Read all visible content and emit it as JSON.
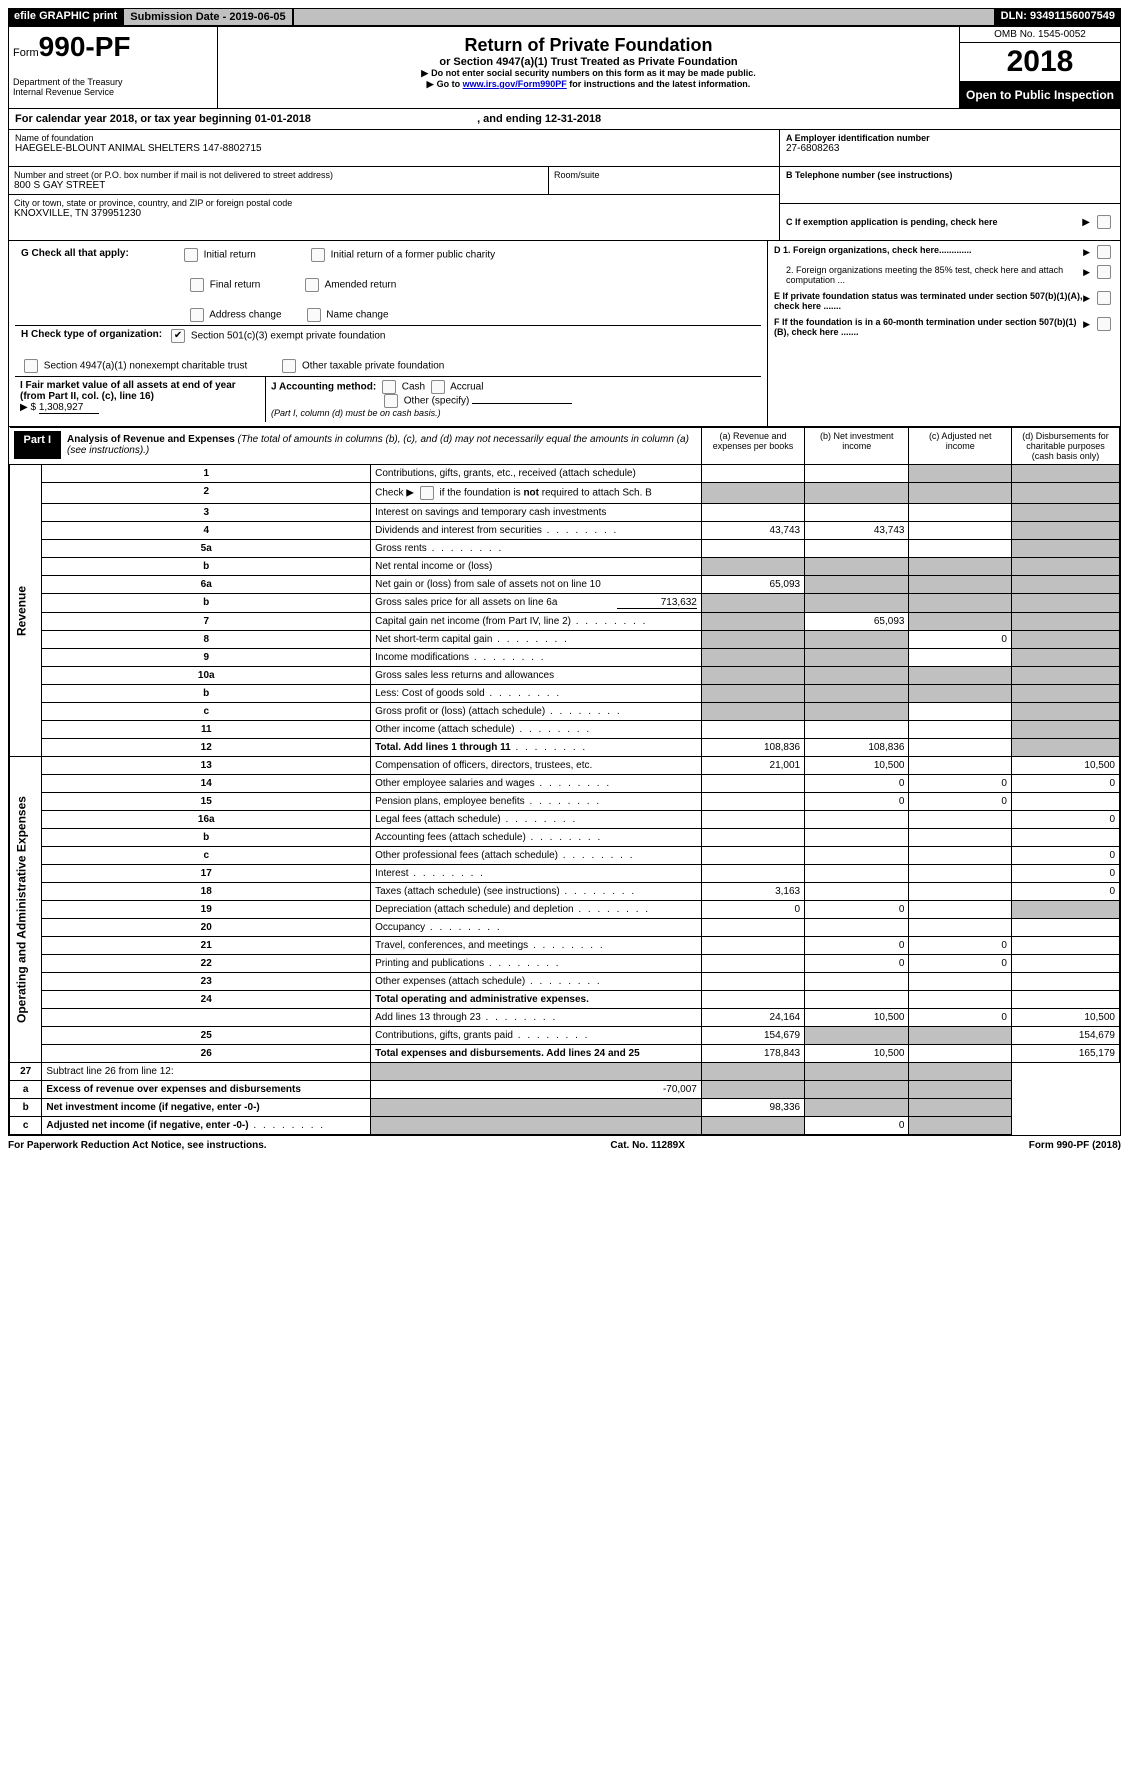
{
  "topbar": {
    "efile": "efile GRAPHIC print",
    "submission_label": "Submission Date - ",
    "submission_date": "2019-06-05",
    "dln_label": "DLN: ",
    "dln": "93491156007549"
  },
  "header": {
    "form_word": "Form",
    "form_number": "990-PF",
    "dept1": "Department of the Treasury",
    "dept2": "Internal Revenue Service",
    "title": "Return of Private Foundation",
    "subtitle": "or Section 4947(a)(1) Trust Treated as Private Foundation",
    "warn": "Do not enter social security numbers on this form as it may be made public.",
    "goto_pre": "Go to ",
    "goto_link": "www.irs.gov/Form990PF",
    "goto_post": " for instructions and the latest information.",
    "omb": "OMB No. 1545-0052",
    "year": "2018",
    "open": "Open to Public Inspection"
  },
  "period": {
    "prefix": "For calendar year 2018, or tax year beginning ",
    "begin": "01-01-2018",
    "mid": ", and ending ",
    "end": "12-31-2018"
  },
  "entity": {
    "name_lbl": "Name of foundation",
    "name": "HAEGELE-BLOUNT ANIMAL SHELTERS 147-8802715",
    "addr_lbl": "Number and street (or P.O. box number if mail is not delivered to street address)",
    "addr": "800 S GAY STREET",
    "room_lbl": "Room/suite",
    "city_lbl": "City or town, state or province, country, and ZIP or foreign postal code",
    "city": "KNOXVILLE, TN  379951230",
    "ein_lbl": "A Employer identification number",
    "ein": "27-6808263",
    "tel_lbl": "B Telephone number (see instructions)",
    "c_lbl": "C  If exemption application is pending, check here"
  },
  "G": {
    "label": "G  Check all that apply:",
    "opts": [
      "Initial return",
      "Initial return of a former public charity",
      "Final return",
      "Amended return",
      "Address change",
      "Name change"
    ]
  },
  "H": {
    "label": "H Check type of organization:",
    "o1": "Section 501(c)(3) exempt private foundation",
    "o2": "Section 4947(a)(1) nonexempt charitable trust",
    "o3": "Other taxable private foundation"
  },
  "I": {
    "label": "I  Fair market value of all assets at end of year (from Part II, col. (c), line 16)",
    "value": "1,308,927"
  },
  "J": {
    "label": "J Accounting method:",
    "o1": "Cash",
    "o2": "Accrual",
    "o3": "Other (specify)",
    "note": "(Part I, column (d) must be on cash basis.)"
  },
  "rightDEF": {
    "d1": "D 1. Foreign organizations, check here.............",
    "d2": "2. Foreign organizations meeting the 85% test, check here and attach computation ...",
    "e": "E  If private foundation status was terminated under section 507(b)(1)(A), check here .......",
    "f": "F  If the foundation is in a 60-month termination under section 507(b)(1)(B), check here ......."
  },
  "partI": {
    "tag": "Part I",
    "title_bold": "Analysis of Revenue and Expenses",
    "title_rest": " (The total of amounts in columns (b), (c), and (d) may not necessarily equal the amounts in column (a) (see instructions).)",
    "cols": {
      "a": "(a)     Revenue and expenses per books",
      "b": "(b)    Net investment income",
      "c": "(c)    Adjusted net income",
      "d": "(d)    Disbursements for charitable purposes (cash basis only)"
    },
    "revenue_label": "Revenue",
    "expenses_label": "Operating and Administrative Expenses",
    "rows": [
      {
        "n": "1",
        "d": "Contributions, gifts, grants, etc., received (attach schedule)",
        "a": "",
        "b": "",
        "c": "s",
        "dd": "s"
      },
      {
        "n": "2",
        "d": "Check ▶ ☐ if the foundation is not required to attach Sch. B",
        "a": "s",
        "b": "s",
        "c": "s",
        "dd": "s",
        "nobind": true
      },
      {
        "n": "3",
        "d": "Interest on savings and temporary cash investments",
        "a": "",
        "b": "",
        "c": "",
        "dd": "s"
      },
      {
        "n": "4",
        "d": "Dividends and interest from securities",
        "a": "43,743",
        "b": "43,743",
        "c": "",
        "dd": "s",
        "dots": true
      },
      {
        "n": "5a",
        "d": "Gross rents",
        "a": "",
        "b": "",
        "c": "",
        "dd": "s",
        "dots": true
      },
      {
        "n": "b",
        "d": "Net rental income or (loss)",
        "a": "s",
        "b": "s",
        "c": "s",
        "dd": "s"
      },
      {
        "n": "6a",
        "d": "Net gain or (loss) from sale of assets not on line 10",
        "a": "65,093",
        "b": "s",
        "c": "s",
        "dd": "s"
      },
      {
        "n": "b",
        "d": "Gross sales price for all assets on line 6a",
        "extra": "713,632",
        "a": "s",
        "b": "s",
        "c": "s",
        "dd": "s"
      },
      {
        "n": "7",
        "d": "Capital gain net income (from Part IV, line 2)",
        "a": "s",
        "b": "65,093",
        "c": "s",
        "dd": "s",
        "dots": true
      },
      {
        "n": "8",
        "d": "Net short-term capital gain",
        "a": "s",
        "b": "s",
        "c": "0",
        "dd": "s",
        "dots": true
      },
      {
        "n": "9",
        "d": "Income modifications",
        "a": "s",
        "b": "s",
        "c": "",
        "dd": "s",
        "dots": true
      },
      {
        "n": "10a",
        "d": "Gross sales less returns and allowances",
        "a": "s",
        "b": "s",
        "c": "s",
        "dd": "s"
      },
      {
        "n": "b",
        "d": "Less: Cost of goods sold",
        "a": "s",
        "b": "s",
        "c": "s",
        "dd": "s",
        "dots": true
      },
      {
        "n": "c",
        "d": "Gross profit or (loss) (attach schedule)",
        "a": "s",
        "b": "s",
        "c": "",
        "dd": "s",
        "dots": true
      },
      {
        "n": "11",
        "d": "Other income (attach schedule)",
        "a": "",
        "b": "",
        "c": "",
        "dd": "s",
        "dots": true
      },
      {
        "n": "12",
        "d": "Total. Add lines 1 through 11",
        "a": "108,836",
        "b": "108,836",
        "c": "",
        "dd": "s",
        "bold": true,
        "dots": true
      }
    ],
    "exp_rows": [
      {
        "n": "13",
        "d": "Compensation of officers, directors, trustees, etc.",
        "a": "21,001",
        "b": "10,500",
        "c": "",
        "dd": "10,500"
      },
      {
        "n": "14",
        "d": "Other employee salaries and wages",
        "a": "",
        "b": "0",
        "c": "0",
        "dd": "0",
        "dots": true
      },
      {
        "n": "15",
        "d": "Pension plans, employee benefits",
        "a": "",
        "b": "0",
        "c": "0",
        "dd": "",
        "dots": true
      },
      {
        "n": "16a",
        "d": "Legal fees (attach schedule)",
        "a": "",
        "b": "",
        "c": "",
        "dd": "0",
        "dots": true
      },
      {
        "n": "b",
        "d": "Accounting fees (attach schedule)",
        "a": "",
        "b": "",
        "c": "",
        "dd": "",
        "dots": true
      },
      {
        "n": "c",
        "d": "Other professional fees (attach schedule)",
        "a": "",
        "b": "",
        "c": "",
        "dd": "0",
        "dots": true
      },
      {
        "n": "17",
        "d": "Interest",
        "a": "",
        "b": "",
        "c": "",
        "dd": "0",
        "dots": true
      },
      {
        "n": "18",
        "d": "Taxes (attach schedule) (see instructions)",
        "a": "3,163",
        "b": "",
        "c": "",
        "dd": "0",
        "dots": true
      },
      {
        "n": "19",
        "d": "Depreciation (attach schedule) and depletion",
        "a": "0",
        "b": "0",
        "c": "",
        "dd": "s",
        "dots": true
      },
      {
        "n": "20",
        "d": "Occupancy",
        "a": "",
        "b": "",
        "c": "",
        "dd": "",
        "dots": true
      },
      {
        "n": "21",
        "d": "Travel, conferences, and meetings",
        "a": "",
        "b": "0",
        "c": "0",
        "dd": "",
        "dots": true
      },
      {
        "n": "22",
        "d": "Printing and publications",
        "a": "",
        "b": "0",
        "c": "0",
        "dd": "",
        "dots": true
      },
      {
        "n": "23",
        "d": "Other expenses (attach schedule)",
        "a": "",
        "b": "",
        "c": "",
        "dd": "",
        "dots": true
      },
      {
        "n": "24",
        "d": "Total operating and administrative expenses.",
        "bold": true
      },
      {
        "n": "",
        "d": "Add lines 13 through 23",
        "a": "24,164",
        "b": "10,500",
        "c": "0",
        "dd": "10,500",
        "dots": true
      },
      {
        "n": "25",
        "d": "Contributions, gifts, grants paid",
        "a": "154,679",
        "b": "s",
        "c": "s",
        "dd": "154,679",
        "dots": true
      },
      {
        "n": "26",
        "d": "Total expenses and disbursements. Add lines 24 and 25",
        "a": "178,843",
        "b": "10,500",
        "c": "",
        "dd": "165,179",
        "bold": true
      }
    ],
    "line27": [
      {
        "n": "27",
        "d": "Subtract line 26 from line 12:",
        "a": "s",
        "b": "s",
        "c": "s",
        "dd": "s"
      },
      {
        "n": "a",
        "d": "Excess of revenue over expenses and disbursements",
        "a": "-70,007",
        "b": "s",
        "c": "s",
        "dd": "s",
        "bold": true
      },
      {
        "n": "b",
        "d": "Net investment income (if negative, enter -0-)",
        "a": "s",
        "b": "98,336",
        "c": "s",
        "dd": "s",
        "bold": true
      },
      {
        "n": "c",
        "d": "Adjusted net income (if negative, enter -0-)",
        "a": "s",
        "b": "s",
        "c": "0",
        "dd": "s",
        "bold": true,
        "dots": true
      }
    ]
  },
  "footer": {
    "left": "For Paperwork Reduction Act Notice, see instructions.",
    "mid": "Cat. No. 11289X",
    "right": "Form 990-PF (2018)"
  }
}
